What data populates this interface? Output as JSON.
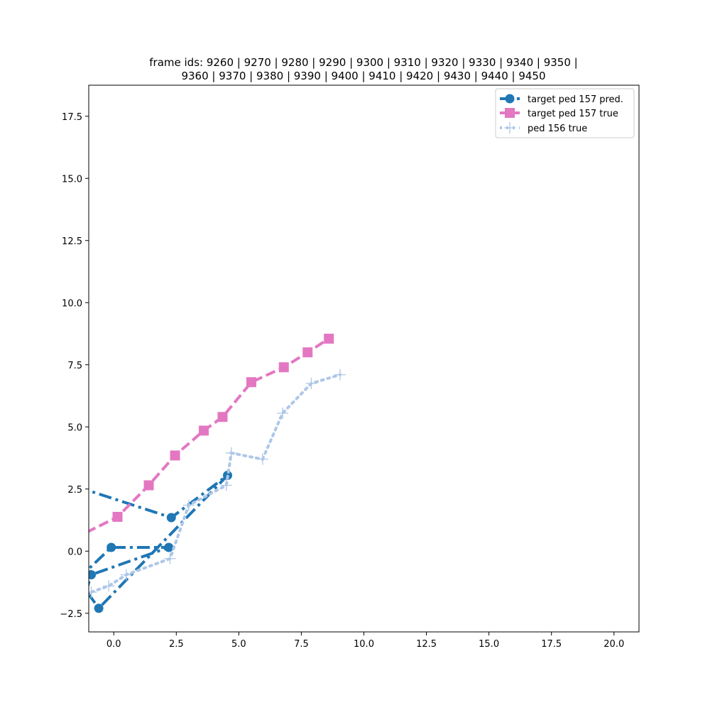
{
  "chart_data": {
    "type": "line",
    "title_lines": [
      "frame ids: 9260 | 9270 | 9280 | 9290 | 9300 | 9310 | 9320 | 9330 | 9340 | 9350 |",
      "9360 | 9370 | 9380 | 9390 | 9400 | 9410 | 9420 | 9430 | 9440 | 9450"
    ],
    "xlabel": "",
    "ylabel": "",
    "xlim": [
      -1.0,
      21.0
    ],
    "ylim": [
      -3.25,
      18.75
    ],
    "xticks": [
      0.0,
      2.5,
      5.0,
      7.5,
      10.0,
      12.5,
      15.0,
      17.5,
      20.0
    ],
    "xtick_labels": [
      "0.0",
      "2.5",
      "5.0",
      "7.5",
      "10.0",
      "12.5",
      "15.0",
      "17.5",
      "20.0"
    ],
    "yticks": [
      -2.5,
      0.0,
      2.5,
      5.0,
      7.5,
      10.0,
      12.5,
      15.0,
      17.5
    ],
    "ytick_labels": [
      "−2.5",
      "0.0",
      "2.5",
      "5.0",
      "7.5",
      "10.0",
      "12.5",
      "15.0",
      "17.5"
    ],
    "grid": false,
    "legend_position": "top-right",
    "series": [
      {
        "name": "target ped 157 pred.",
        "color": "#1f77b4",
        "style": "dashdot",
        "marker": "circle",
        "points": [
          [
            -1.5,
            2.6
          ],
          [
            2.3,
            1.35
          ],
          [
            4.55,
            3.05
          ],
          [
            -0.6,
            -2.3
          ],
          [
            -1.2,
            -1.45
          ],
          [
            -1.2,
            -0.9
          ],
          [
            -0.1,
            0.15
          ],
          [
            2.2,
            0.15
          ],
          [
            -0.9,
            -0.95
          ],
          [
            -1.5,
            -2.9
          ]
        ]
      },
      {
        "name": "target ped 157 true",
        "color": "#e377c2",
        "style": "dashed",
        "marker": "square",
        "points": [
          [
            -1.6,
            0.5
          ],
          [
            0.15,
            1.38
          ],
          [
            1.4,
            2.65
          ],
          [
            2.45,
            3.85
          ],
          [
            3.6,
            4.85
          ],
          [
            4.35,
            5.4
          ],
          [
            5.5,
            6.8
          ],
          [
            6.8,
            7.4
          ],
          [
            7.75,
            8.0
          ],
          [
            8.6,
            8.55
          ]
        ]
      },
      {
        "name": "ped 156 true",
        "color": "#aec7e8",
        "style": "dotted",
        "marker": "plus",
        "points": [
          [
            -1.5,
            -2.1
          ],
          [
            -0.9,
            -1.65
          ],
          [
            -0.2,
            -1.4
          ],
          [
            0.5,
            -0.95
          ],
          [
            2.25,
            -0.3
          ],
          [
            3.0,
            1.85
          ],
          [
            4.5,
            2.65
          ],
          [
            4.7,
            3.95
          ],
          [
            5.95,
            3.7
          ],
          [
            6.75,
            5.55
          ],
          [
            7.9,
            6.75
          ],
          [
            9.05,
            7.1
          ]
        ]
      }
    ]
  }
}
